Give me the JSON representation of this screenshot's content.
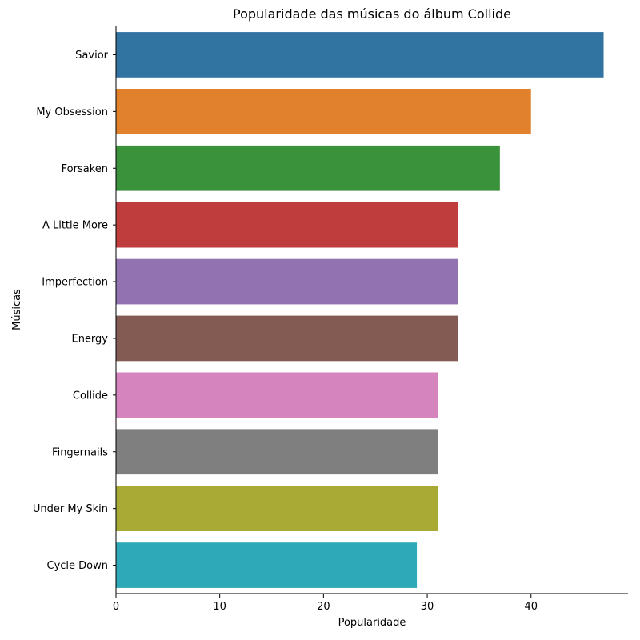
{
  "chart_data": {
    "type": "bar",
    "orientation": "horizontal",
    "title": "Popularidade das músicas do álbum Collide",
    "xlabel": "Popularidade",
    "ylabel": "Músicas",
    "categories": [
      "Savior",
      "My Obsession",
      "Forsaken",
      "A Little More",
      "Imperfection",
      "Energy",
      "Collide",
      "Fingernails",
      "Under My Skin",
      "Cycle Down"
    ],
    "values": [
      47,
      40,
      37,
      33,
      33,
      33,
      31,
      31,
      31,
      29
    ],
    "colors": [
      "#3274a1",
      "#e1812c",
      "#3a923a",
      "#c03d3e",
      "#9372b2",
      "#845b53",
      "#d684bd",
      "#7f7f7f",
      "#a9aa35",
      "#2ea9b8"
    ],
    "xlim": [
      0,
      49.35
    ],
    "xticks": [
      0,
      10,
      20,
      30,
      40
    ],
    "grid": false,
    "legend": "none"
  }
}
